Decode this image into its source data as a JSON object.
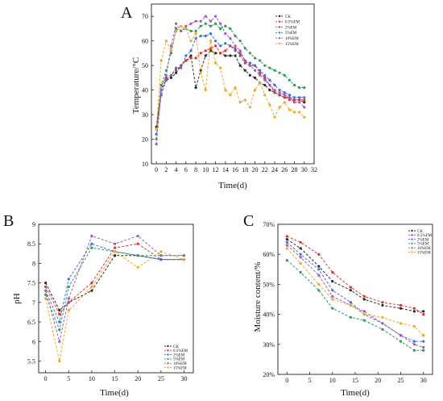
{
  "chart_data": [
    {
      "panel": "A",
      "type": "line",
      "xlabel": "Time(d)",
      "ylabel": "Temperature/°C",
      "xlim": [
        -1,
        32
      ],
      "ylim": [
        10,
        75
      ],
      "xticks": [
        0,
        2,
        4,
        6,
        8,
        10,
        12,
        14,
        16,
        18,
        20,
        22,
        24,
        26,
        28,
        30,
        32
      ],
      "yticks": [
        10,
        20,
        30,
        40,
        50,
        60,
        70
      ],
      "legend_position": "top-right",
      "colors": [
        "#2a2a2a",
        "#e8302a",
        "#3d6fd8",
        "#2e9c5a",
        "#9b59c9",
        "#f0a81c"
      ],
      "series": [
        {
          "name": "CK",
          "x": [
            0,
            1,
            2,
            3,
            4,
            5,
            6,
            7,
            8,
            9,
            10,
            11,
            12,
            13,
            14,
            15,
            16,
            17,
            18,
            19,
            20,
            21,
            22,
            23,
            24,
            25,
            26,
            27,
            28,
            29,
            30
          ],
          "values": [
            25,
            40,
            44,
            45,
            47,
            50,
            52,
            54,
            41,
            48,
            54,
            56,
            55,
            55,
            54,
            54,
            54,
            50,
            48,
            46,
            45,
            43,
            42,
            40,
            39,
            38,
            37,
            37,
            36,
            36,
            35
          ]
        },
        {
          "name": "0.5%EM",
          "x": [
            0,
            1,
            2,
            3,
            4,
            5,
            6,
            7,
            8,
            9,
            10,
            11,
            12,
            13,
            14,
            15,
            16,
            17,
            18,
            19,
            20,
            21,
            22,
            23,
            24,
            25,
            26,
            27,
            28,
            29,
            30
          ],
          "values": [
            24,
            42,
            45,
            46,
            48,
            50,
            52,
            53,
            53,
            55,
            56,
            57,
            58,
            55,
            56,
            58,
            57,
            54,
            51,
            50,
            50,
            47,
            45,
            42,
            39,
            38,
            37,
            36,
            36,
            36,
            36
          ]
        },
        {
          "name": "2%EM",
          "x": [
            0,
            1,
            2,
            3,
            4,
            5,
            6,
            7,
            8,
            9,
            10,
            11,
            12,
            13,
            14,
            15,
            16,
            17,
            18,
            19,
            20,
            21,
            22,
            23,
            24,
            25,
            26,
            27,
            28,
            29,
            30
          ],
          "values": [
            22,
            38,
            44,
            46,
            49,
            49,
            54,
            56,
            61,
            62,
            62,
            63,
            60,
            58,
            59,
            58,
            56,
            55,
            52,
            51,
            50,
            48,
            46,
            44,
            42,
            40,
            39,
            38,
            37,
            37,
            37
          ]
        },
        {
          "name": "5%EM",
          "x": [
            0,
            1,
            2,
            3,
            4,
            5,
            6,
            7,
            8,
            9,
            10,
            11,
            12,
            13,
            14,
            15,
            16,
            17,
            18,
            19,
            20,
            21,
            22,
            23,
            24,
            25,
            26,
            27,
            28,
            29,
            30
          ],
          "values": [
            20,
            42,
            48,
            55,
            65,
            64,
            65,
            64,
            64,
            66,
            67,
            66,
            67,
            65,
            66,
            65,
            62,
            60,
            57,
            55,
            53,
            52,
            50,
            49,
            48,
            47,
            46,
            44,
            42,
            41,
            41
          ]
        },
        {
          "name": "10%EM",
          "x": [
            0,
            1,
            2,
            3,
            4,
            5,
            6,
            7,
            8,
            9,
            10,
            11,
            12,
            13,
            14,
            15,
            16,
            17,
            18,
            19,
            20,
            21,
            22,
            23,
            24,
            25,
            26,
            27,
            28,
            29,
            30
          ],
          "values": [
            18,
            40,
            46,
            58,
            67,
            64,
            66,
            67,
            68,
            68,
            70,
            68,
            70,
            67,
            63,
            61,
            58,
            56,
            52,
            50,
            48,
            46,
            44,
            42,
            40,
            39,
            38,
            37,
            35,
            35,
            33
          ]
        },
        {
          "name": "15%EM",
          "x": [
            0,
            1,
            2,
            3,
            4,
            5,
            6,
            7,
            8,
            9,
            10,
            11,
            12,
            13,
            14,
            15,
            16,
            17,
            18,
            19,
            20,
            21,
            22,
            23,
            24,
            25,
            26,
            27,
            28,
            29,
            30
          ],
          "values": [
            24,
            52,
            60,
            56,
            64,
            66,
            65,
            60,
            63,
            47,
            40,
            60,
            51,
            49,
            40,
            38,
            41,
            35,
            36,
            33,
            40,
            43,
            38,
            34,
            29,
            33,
            35,
            32,
            31,
            31,
            29
          ]
        }
      ]
    },
    {
      "panel": "B",
      "type": "line",
      "xlabel": "Time(d)",
      "ylabel": "pH",
      "xlim": [
        -1.5,
        32
      ],
      "ylim": [
        5.2,
        9.0
      ],
      "xticks": [
        0,
        5,
        10,
        15,
        20,
        25,
        30
      ],
      "yticks": [
        5.5,
        6.0,
        6.5,
        7.0,
        7.5,
        8.0,
        8.5,
        9.0
      ],
      "legend_position": "bottom-right",
      "colors": [
        "#2a2a2a",
        "#e8302a",
        "#3d6fd8",
        "#2e9c5a",
        "#9b59c9",
        "#f0a81c"
      ],
      "series": [
        {
          "name": "CK",
          "x": [
            0,
            3,
            5,
            10,
            15,
            20,
            25,
            30
          ],
          "values": [
            7.5,
            6.8,
            7.0,
            7.3,
            8.2,
            8.2,
            8.1,
            8.1
          ]
        },
        {
          "name": "0.5%EM",
          "x": [
            0,
            3,
            5,
            10,
            15,
            20,
            25,
            30
          ],
          "values": [
            7.4,
            6.7,
            7.0,
            7.5,
            8.4,
            8.5,
            8.1,
            8.1
          ]
        },
        {
          "name": "2%EM",
          "x": [
            0,
            3,
            5,
            10,
            15,
            20,
            25,
            30
          ],
          "values": [
            7.3,
            6.5,
            7.6,
            8.5,
            8.3,
            8.2,
            8.1,
            8.1
          ]
        },
        {
          "name": "5%EM",
          "x": [
            0,
            3,
            5,
            10,
            15,
            20,
            25,
            30
          ],
          "values": [
            7.2,
            6.3,
            7.4,
            8.4,
            8.3,
            8.2,
            8.2,
            8.2
          ]
        },
        {
          "name": "10%EM",
          "x": [
            0,
            3,
            5,
            10,
            15,
            20,
            25,
            30
          ],
          "values": [
            7.3,
            6.0,
            7.1,
            8.7,
            8.5,
            8.7,
            8.2,
            8.2
          ]
        },
        {
          "name": "15%EM",
          "x": [
            0,
            3,
            5,
            10,
            15,
            20,
            25,
            30
          ],
          "values": [
            7.1,
            5.5,
            6.8,
            7.4,
            8.3,
            7.9,
            8.3,
            8.1
          ]
        }
      ]
    },
    {
      "panel": "C",
      "type": "line",
      "xlabel": "Time(d)",
      "ylabel": "Moisture content/%",
      "xlim": [
        -2,
        32
      ],
      "ylim": [
        20,
        70
      ],
      "xticks": [
        0,
        5,
        10,
        15,
        20,
        25,
        30
      ],
      "yticks": [
        20,
        30,
        40,
        50,
        60,
        70
      ],
      "ytick_labels": [
        "20%",
        "30%",
        "40%",
        "50%",
        "60%",
        "70%"
      ],
      "legend_position": "top-right",
      "colors": [
        "#2a2a2a",
        "#e8302a",
        "#3d6fd8",
        "#2e9c5a",
        "#9b59c9",
        "#f0a81c"
      ],
      "series": [
        {
          "name": "CK",
          "x": [
            0,
            3,
            7,
            10,
            14,
            17,
            21,
            25,
            28,
            30
          ],
          "values": [
            65,
            62,
            56,
            51,
            48,
            45,
            43,
            42,
            41,
            41
          ]
        },
        {
          "name": "0.5%EM",
          "x": [
            0,
            3,
            7,
            10,
            14,
            17,
            21,
            25,
            28,
            30
          ],
          "values": [
            66,
            64,
            60,
            54,
            49,
            46,
            44,
            43,
            42,
            40
          ]
        },
        {
          "name": "2%EM",
          "x": [
            0,
            3,
            7,
            10,
            14,
            17,
            21,
            25,
            28,
            30
          ],
          "values": [
            64,
            60,
            55,
            48,
            44,
            40,
            37,
            33,
            31,
            31
          ]
        },
        {
          "name": "5%EM",
          "x": [
            0,
            3,
            7,
            10,
            14,
            17,
            21,
            25,
            28,
            30
          ],
          "values": [
            58,
            54,
            48,
            42,
            39,
            38,
            35,
            31,
            28,
            28
          ]
        },
        {
          "name": "10%EM",
          "x": [
            0,
            3,
            7,
            10,
            14,
            17,
            21,
            25,
            28,
            30
          ],
          "values": [
            63,
            59,
            53,
            46,
            43,
            41,
            37,
            33,
            30,
            29
          ]
        },
        {
          "name": "15%EM",
          "x": [
            0,
            3,
            7,
            10,
            14,
            17,
            21,
            25,
            28,
            30
          ],
          "values": [
            62,
            57,
            50,
            45,
            43,
            40,
            39,
            37,
            36,
            33
          ]
        }
      ]
    }
  ]
}
